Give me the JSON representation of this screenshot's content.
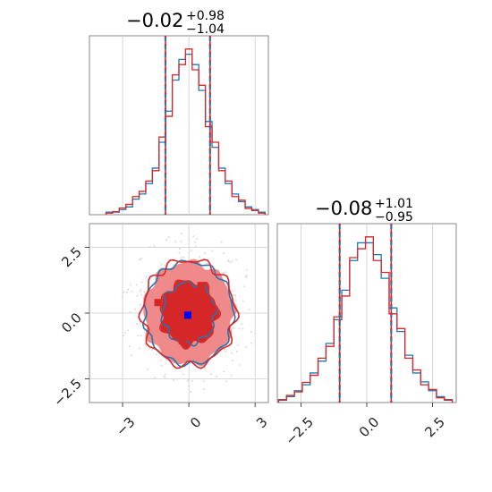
{
  "colors": {
    "blue": "#1f77b4",
    "red": "#d62728",
    "fill_inner": "#d62728",
    "fill_outer": "#f08a8a",
    "marker": "#0000ff"
  },
  "chart_data": [
    {
      "type": "step-histogram",
      "panel": "top-left",
      "title": {
        "main": "−0.02",
        "sup": "+0.98",
        "sub": "−1.04"
      },
      "xlim": [
        -4.5,
        3.6
      ],
      "grid": true,
      "quantile_lines": [
        -1.06,
        0.96
      ],
      "series": [
        {
          "name": "",
          "color": "blue",
          "x": [
            -3.6,
            -3.3,
            -3.0,
            -2.7,
            -2.4,
            -2.1,
            -1.8,
            -1.5,
            -1.2,
            -0.9,
            -0.6,
            -0.3,
            0.0,
            0.3,
            0.6,
            0.9,
            1.2,
            1.5,
            1.8,
            2.1,
            2.4,
            2.7,
            3.0,
            3.3
          ],
          "values": [
            0.5,
            0.5,
            1,
            1.5,
            3,
            4,
            6,
            9,
            14,
            20,
            26,
            30,
            31,
            29,
            24,
            18,
            13,
            9,
            6,
            4,
            2.5,
            1.5,
            1,
            0.5
          ]
        },
        {
          "name": "",
          "color": "red",
          "x": [
            -3.6,
            -3.3,
            -3.0,
            -2.7,
            -2.4,
            -2.1,
            -1.8,
            -1.5,
            -1.2,
            -0.9,
            -0.6,
            -0.3,
            0.0,
            0.3,
            0.6,
            0.9,
            1.2,
            1.5,
            1.8,
            2.1,
            2.4,
            2.7,
            3.0,
            3.3
          ],
          "values": [
            0.3,
            0.6,
            1.3,
            2,
            3.5,
            4.5,
            6.5,
            8.5,
            15,
            19,
            27,
            29,
            32,
            28,
            25,
            17,
            14,
            8.5,
            6.5,
            3.5,
            2.8,
            1.2,
            0.8,
            0.3
          ]
        }
      ]
    },
    {
      "type": "contour-scatter",
      "panel": "bottom-left",
      "xlim": [
        -4.5,
        3.6
      ],
      "ylim": [
        -3.4,
        3.4
      ],
      "xticks": [
        "−3",
        "0",
        "3"
      ],
      "xtick_values": [
        -3,
        0,
        3
      ],
      "yticks": [
        "−2.5",
        "0.0",
        "2.5"
      ],
      "ytick_values": [
        -2.5,
        0,
        2.5
      ],
      "grid": true,
      "levels": [
        {
          "rx": 1.0,
          "ry": 1.0
        },
        {
          "rx": 2.05,
          "ry": 1.95
        }
      ],
      "markers": [
        {
          "x": -0.05,
          "y": -0.08,
          "color": "marker"
        },
        {
          "x": 0.55,
          "y": 1.05,
          "color": "red"
        },
        {
          "x": 0.85,
          "y": 0.45,
          "color": "red"
        },
        {
          "x": -0.3,
          "y": -1.05,
          "color": "red"
        },
        {
          "x": -1.4,
          "y": 0.4,
          "color": "red"
        }
      ]
    },
    {
      "type": "step-histogram",
      "panel": "bottom-right",
      "title": {
        "main": "−0.08",
        "sup": "+1.01",
        "sub": "−0.95"
      },
      "xlim": [
        -3.4,
        3.4
      ],
      "xticks": [
        "−2.5",
        "0.0",
        "2.5"
      ],
      "xtick_values": [
        -2.5,
        0,
        2.5
      ],
      "grid": true,
      "quantile_lines": [
        -1.03,
        0.93
      ],
      "series": [
        {
          "name": "",
          "color": "blue",
          "x": [
            -3.2,
            -2.9,
            -2.6,
            -2.3,
            -2.0,
            -1.7,
            -1.4,
            -1.1,
            -0.8,
            -0.5,
            -0.2,
            0.1,
            0.4,
            0.7,
            1.0,
            1.3,
            1.6,
            1.9,
            2.2,
            2.5,
            2.8,
            3.1
          ],
          "values": [
            0.5,
            1,
            2,
            3,
            5,
            7,
            10,
            14,
            19,
            24,
            27,
            27,
            25,
            21,
            16,
            12,
            8,
            5,
            3.5,
            2,
            1,
            0.5
          ]
        },
        {
          "name": "",
          "color": "red",
          "x": [
            -3.2,
            -2.9,
            -2.6,
            -2.3,
            -2.0,
            -1.7,
            -1.4,
            -1.1,
            -0.8,
            -0.5,
            -0.2,
            0.1,
            0.4,
            0.7,
            1.0,
            1.3,
            1.6,
            1.9,
            2.2,
            2.5,
            2.8,
            3.1
          ],
          "values": [
            0.4,
            1.2,
            1.8,
            3.4,
            4.6,
            7.5,
            9.5,
            14.5,
            18,
            24.5,
            26,
            28,
            24,
            22,
            15,
            12.5,
            7.5,
            5.5,
            3,
            2.2,
            0.8,
            0.4
          ]
        }
      ]
    }
  ]
}
